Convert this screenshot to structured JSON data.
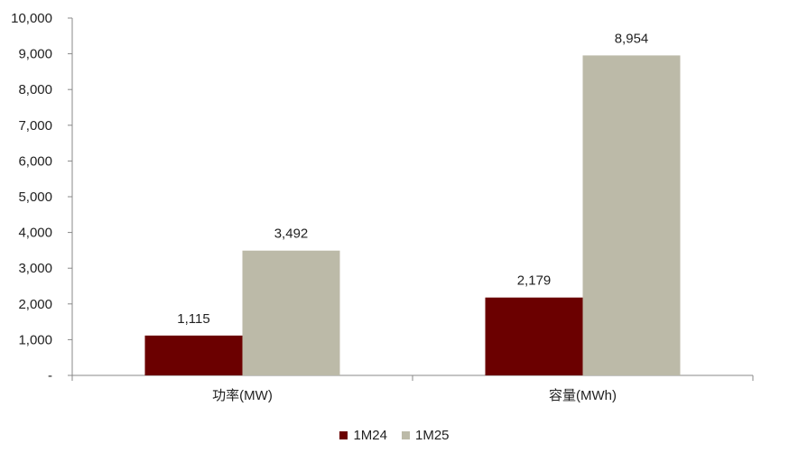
{
  "chart_data": {
    "type": "bar",
    "categories": [
      "功率(MW)",
      "容量(MWh)"
    ],
    "series": [
      {
        "name": "1M24",
        "values": [
          1115,
          2179
        ],
        "labels": [
          "1,115",
          "2,179"
        ],
        "color": "#6b0000"
      },
      {
        "name": "1M25",
        "values": [
          3492,
          8954
        ],
        "labels": [
          "3,492",
          "8,954"
        ],
        "color": "#bcbaa8"
      }
    ],
    "ylim": [
      0,
      10000
    ],
    "yticks": [
      0,
      1000,
      2000,
      3000,
      4000,
      5000,
      6000,
      7000,
      8000,
      9000,
      10000
    ],
    "ytick_labels": [
      "-",
      "1,000",
      "2,000",
      "3,000",
      "4,000",
      "5,000",
      "6,000",
      "7,000",
      "8,000",
      "9,000",
      "10,000"
    ],
    "grid": false,
    "legend": "bottom-center"
  }
}
